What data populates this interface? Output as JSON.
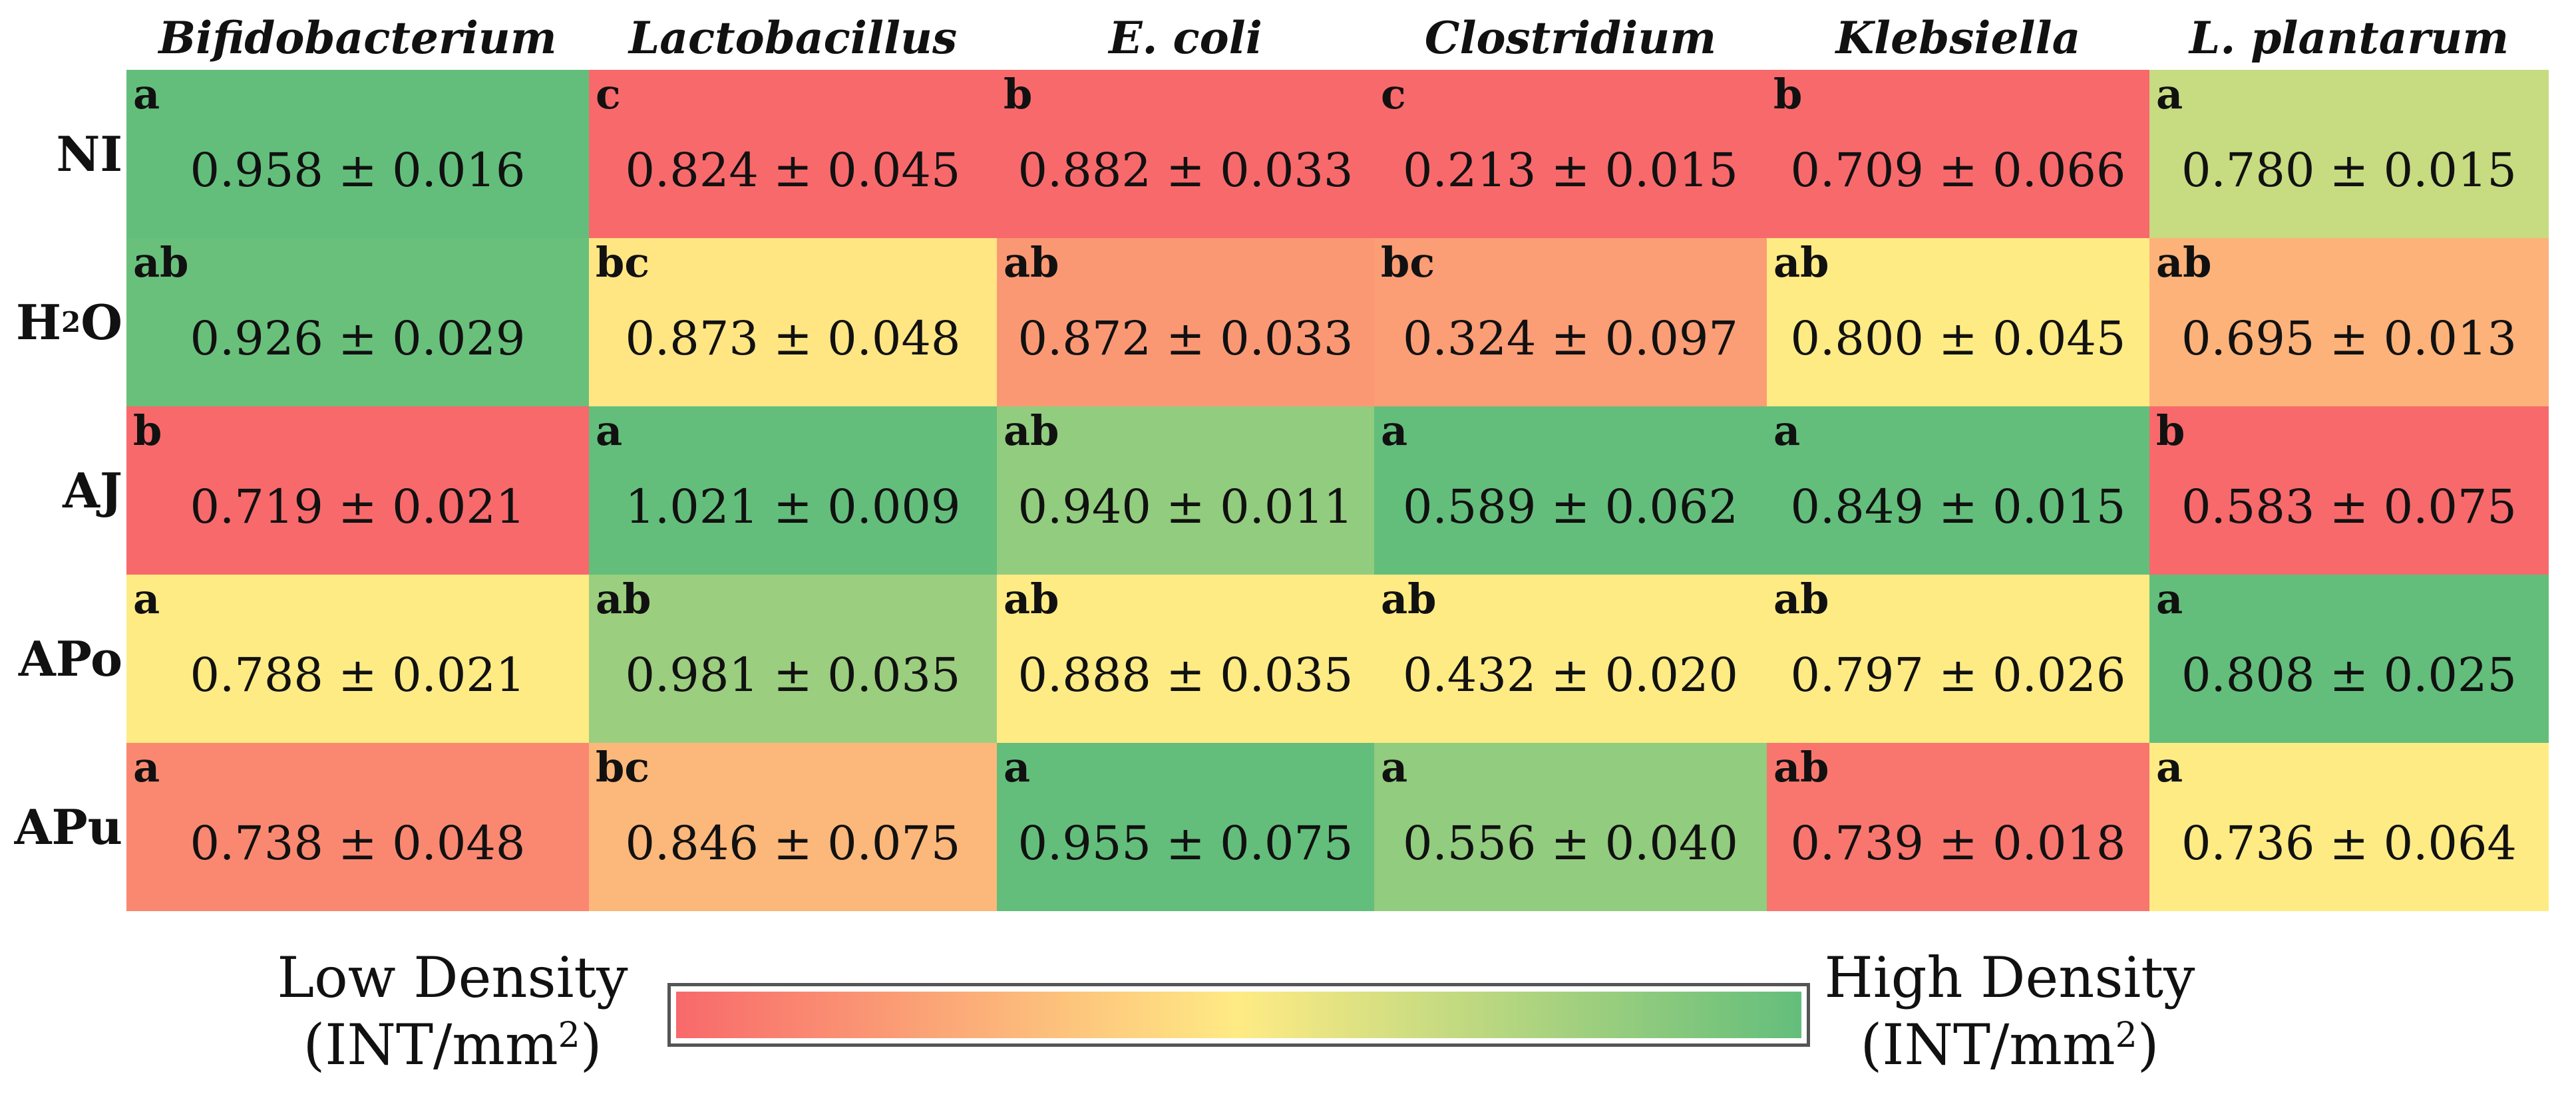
{
  "chart_data": {
    "type": "heatmap",
    "columns": [
      "Bifidobacterium",
      "Lactobacillus",
      "E. coli",
      "Clostridium",
      "Klebsiella",
      "L. plantarum"
    ],
    "rows": [
      {
        "label": "NI",
        "cells": [
          {
            "letter": "a",
            "value": "0.958 ± 0.016",
            "level": 1.0
          },
          {
            "letter": "c",
            "value": "0.824 ± 0.045",
            "level": 0.0
          },
          {
            "letter": "b",
            "value": "0.882 ± 0.033",
            "level": 0.0
          },
          {
            "letter": "c",
            "value": "0.213 ± 0.015",
            "level": 0.0
          },
          {
            "letter": "b",
            "value": "0.709 ± 0.066",
            "level": 0.0
          },
          {
            "letter": "a",
            "value": "0.780 ± 0.015",
            "level": 0.68
          }
        ]
      },
      {
        "label_main": "H",
        "label_sub": "2",
        "label_tail": "O",
        "cells": [
          {
            "letter": "ab",
            "value": "0.926 ± 0.029",
            "level": 0.98
          },
          {
            "letter": "bc",
            "value": "0.873 ± 0.048",
            "level": 0.48
          },
          {
            "letter": "ab",
            "value": "0.872 ± 0.033",
            "level": 0.18
          },
          {
            "letter": "bc",
            "value": "0.324 ± 0.097",
            "level": 0.2
          },
          {
            "letter": "ab",
            "value": "0.800 ± 0.045",
            "level": 0.5
          },
          {
            "letter": "ab",
            "value": "0.695 ± 0.013",
            "level": 0.28
          }
        ]
      },
      {
        "label": "AJ",
        "cells": [
          {
            "letter": "b",
            "value": "0.719 ± 0.021",
            "level": 0.0
          },
          {
            "letter": "a",
            "value": "1.021 ± 0.009",
            "level": 1.0
          },
          {
            "letter": "ab",
            "value": "0.940 ± 0.011",
            "level": 0.85
          },
          {
            "letter": "a",
            "value": "0.589 ± 0.062",
            "level": 1.0
          },
          {
            "letter": "a",
            "value": "0.849 ± 0.015",
            "level": 1.0
          },
          {
            "letter": "b",
            "value": "0.583 ± 0.075",
            "level": 0.0
          }
        ]
      },
      {
        "label": "APo",
        "cells": [
          {
            "letter": "a",
            "value": "0.788 ± 0.021",
            "level": 0.5
          },
          {
            "letter": "ab",
            "value": "0.981 ± 0.035",
            "level": 0.82
          },
          {
            "letter": "ab",
            "value": "0.888 ± 0.035",
            "level": 0.5
          },
          {
            "letter": "ab",
            "value": "0.432 ± 0.020",
            "level": 0.5
          },
          {
            "letter": "ab",
            "value": "0.797 ± 0.026",
            "level": 0.5
          },
          {
            "letter": "a",
            "value": "0.808 ± 0.025",
            "level": 1.0
          }
        ]
      },
      {
        "label": "APu",
        "cells": [
          {
            "letter": "a",
            "value": "0.738 ± 0.048",
            "level": 0.12
          },
          {
            "letter": "bc",
            "value": "0.846 ± 0.075",
            "level": 0.3
          },
          {
            "letter": "a",
            "value": "0.955 ± 0.075",
            "level": 1.0
          },
          {
            "letter": "a",
            "value": "0.556 ± 0.040",
            "level": 0.85
          },
          {
            "letter": "ab",
            "value": "0.739 ± 0.018",
            "level": 0.05
          },
          {
            "letter": "a",
            "value": "0.736 ± 0.064",
            "level": 0.5
          }
        ]
      }
    ],
    "legend": {
      "low_label": "Low Density",
      "high_label": "High Density",
      "unit_prefix": "(INT/mm",
      "unit_sup": "2",
      "unit_suffix": ")",
      "placement": "bottom"
    },
    "colors": {
      "low": "#f8696b",
      "mid": "#ffeb84",
      "high": "#63be7b"
    }
  }
}
